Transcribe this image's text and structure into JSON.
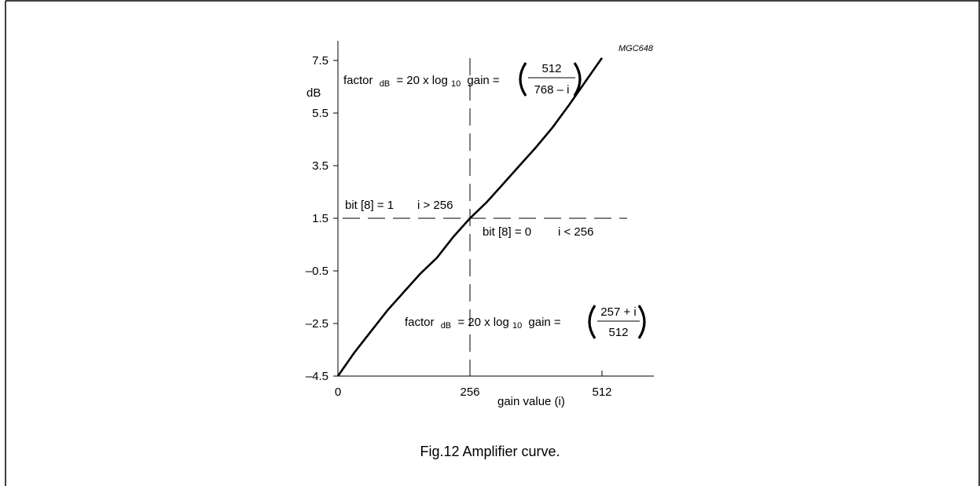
{
  "figure": {
    "code": "MGC648",
    "caption": "Fig.12  Amplifier curve."
  },
  "chart_data": {
    "type": "line",
    "xlabel": "gain value (i)",
    "ylabel": "dB",
    "xlim": [
      0,
      600
    ],
    "ylim": [
      -4.5,
      8.5
    ],
    "x_ticks": [
      0,
      256,
      512
    ],
    "x_tick_labels": [
      "0",
      "256",
      "512"
    ],
    "y_ticks": [
      7.5,
      5.5,
      3.5,
      1.5,
      -0.5,
      -2.5,
      -4.5
    ],
    "y_tick_labels": [
      "7.5",
      "5.5",
      "3.5",
      "1.5",
      "–0.5",
      "–2.5",
      "–4.5"
    ],
    "grid": false,
    "reference_lines": [
      {
        "orientation": "vertical",
        "value": 256,
        "style": "dashed"
      },
      {
        "orientation": "horizontal",
        "value": 1.5,
        "style": "dashed"
      }
    ],
    "annotations": {
      "formula_upper": {
        "prefix": "factor",
        "sub1": "dB",
        "middle": "= 20 x log",
        "sub2": "10",
        "suffix": "gain =",
        "numerator": "512",
        "denominator": "768 – i"
      },
      "formula_lower": {
        "prefix": "factor",
        "sub1": "dB",
        "middle": "= 20 x log",
        "sub2": "10",
        "suffix": "gain =",
        "numerator": "257 + i",
        "denominator": "512"
      },
      "bit_high": {
        "bit": "bit [8] = 1",
        "cond": "i > 256"
      },
      "bit_low": {
        "bit": "bit [8] = 0",
        "cond": "i < 256"
      }
    },
    "series": [
      {
        "x": [
          0,
          32,
          64,
          96,
          128,
          160,
          192,
          224,
          256,
          288,
          320,
          352,
          384,
          416,
          448,
          480,
          512
        ],
        "values": [
          -4.5,
          -3.6,
          -2.8,
          -2.0,
          -1.3,
          -0.6,
          0.0,
          0.8,
          1.5,
          2.1,
          2.8,
          3.5,
          4.2,
          4.95,
          5.8,
          6.7,
          7.6
        ]
      }
    ]
  }
}
